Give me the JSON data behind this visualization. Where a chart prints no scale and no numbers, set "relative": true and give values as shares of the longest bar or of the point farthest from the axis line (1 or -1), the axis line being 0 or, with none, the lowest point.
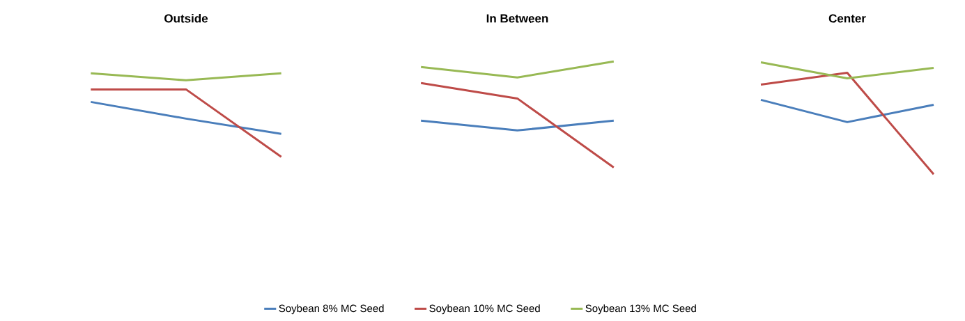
{
  "chart_data": [
    {
      "type": "line",
      "title": "Outside",
      "categories": [
        null,
        null,
        null
      ],
      "relative": true,
      "series": [
        {
          "color": "#4a7ebb",
          "values": [
            0.658,
            0.458,
            0.275
          ]
        },
        {
          "color": "#be4b48",
          "values": [
            0.808,
            0.808,
            0
          ]
        },
        {
          "color": "#98b954",
          "values": [
            1.0,
            0.917,
            1.0
          ]
        }
      ]
    },
    {
      "type": "line",
      "title": "In Between",
      "categories": [
        null,
        null,
        null
      ],
      "relative": true,
      "legend": "bottom",
      "series": [
        {
          "name": "Soybean 8% MC Seed",
          "color": "#4a7ebb",
          "values": [
            0.441,
            0.349,
            0.441
          ]
        },
        {
          "name": "Soybean 10% MC Seed",
          "color": "#be4b48",
          "values": [
            0.796,
            0.651,
            0
          ]
        },
        {
          "name": "Soybean 13% MC Seed",
          "color": "#98b954",
          "values": [
            0.947,
            0.849,
            1.0
          ]
        }
      ]
    },
    {
      "type": "line",
      "title": "Center",
      "categories": [
        null,
        null,
        null
      ],
      "relative": true,
      "series": [
        {
          "color": "#4a7ebb",
          "values": [
            0.665,
            0.466,
            0.621
          ]
        },
        {
          "color": "#be4b48",
          "values": [
            0.801,
            0.907,
            0
          ]
        },
        {
          "color": "#98b954",
          "values": [
            1.0,
            0.857,
            0.95
          ]
        }
      ]
    }
  ]
}
